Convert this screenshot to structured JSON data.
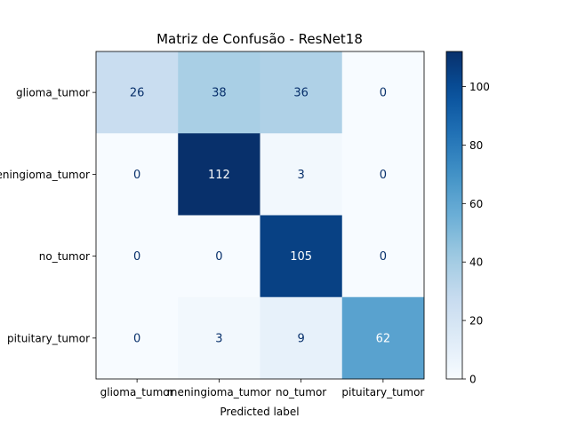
{
  "chart_data": {
    "type": "heatmap",
    "title": "Matriz de Confusão - ResNet18",
    "xlabel": "Predicted label",
    "ylabel": "",
    "x_categories": [
      "glioma_tumor",
      "meningioma_tumor",
      "no_tumor",
      "pituitary_tumor"
    ],
    "y_categories": [
      "glioma_tumor",
      "meningioma_tumor",
      "no_tumor",
      "pituitary_tumor"
    ],
    "matrix": [
      [
        26,
        38,
        36,
        0
      ],
      [
        0,
        112,
        3,
        0
      ],
      [
        0,
        0,
        105,
        0
      ],
      [
        0,
        3,
        9,
        62
      ]
    ],
    "colormap": "Blues",
    "colorbar": {
      "min": 0,
      "max": 112,
      "ticks": [
        0,
        20,
        40,
        60,
        80,
        100
      ]
    },
    "grid": false
  }
}
